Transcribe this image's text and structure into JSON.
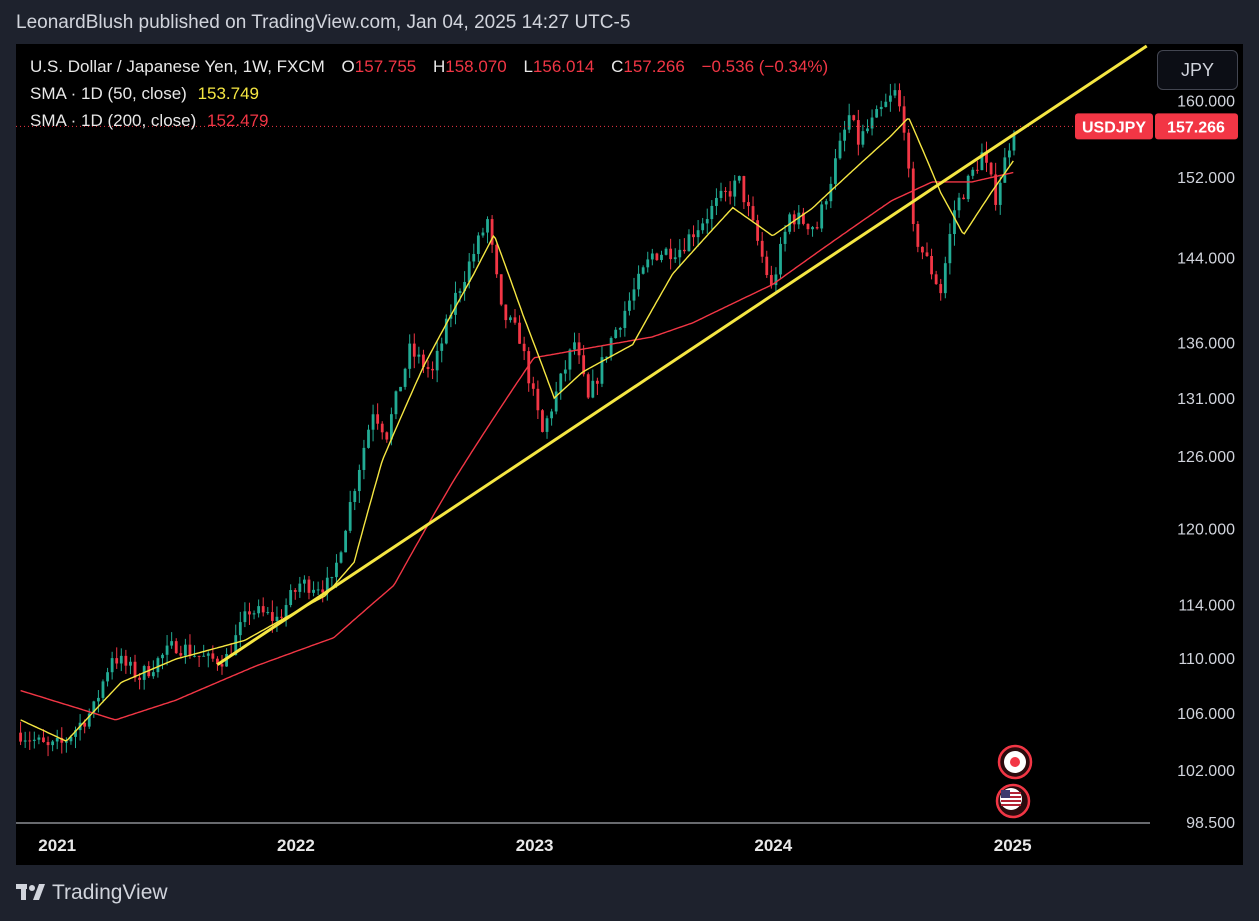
{
  "header": {
    "text": "LeonardBlush published on TradingView.com, Jan 04, 2025 14:27 UTC-5"
  },
  "legend": {
    "title": "U.S. Dollar / Japanese Yen, 1W, FXCM",
    "o_label": "O",
    "o_value": "157.755",
    "h_label": "H",
    "h_value": "158.070",
    "l_label": "L",
    "l_value": "156.014",
    "c_label": "C",
    "c_value": "157.266",
    "change": "−0.536 (−0.34%)",
    "sma50_label": "SMA · 1D (50, close)",
    "sma50_value": "153.749",
    "sma200_label": "SMA · 1D (200, close)",
    "sma200_value": "152.479"
  },
  "currency_button": "JPY",
  "price_tag": {
    "symbol": "USDJPY",
    "price": "157.266"
  },
  "footer": {
    "brand": "TradingView",
    "logo_icon": "tradingview-logo-icon"
  },
  "icons": {
    "event1": "event-flag-japan-icon",
    "event2": "event-flag-us-icon"
  },
  "colors": {
    "up": "#22ab94",
    "down": "#f23645",
    "sma50": "#f5e642",
    "sma200": "#f23645",
    "trendline": "#f5e642",
    "background": "#000000"
  },
  "chart_data": {
    "type": "candlestick",
    "symbol": "USDJPY",
    "interval": "1W",
    "log_scale": true,
    "ylim": [
      98.5,
      166
    ],
    "y_ticks": [
      "160.000",
      "152.000",
      "144.000",
      "136.000",
      "131.000",
      "126.000",
      "120.000",
      "114.000",
      "110.000",
      "106.000",
      "102.000",
      "98.500"
    ],
    "x_ticks": [
      "2021",
      "2022",
      "2023",
      "2024",
      "2025"
    ],
    "close_anchors": [
      [
        "2020-11-06",
        104.6
      ],
      [
        "2020-12-18",
        103.5
      ],
      [
        "2021-01-08",
        103.8
      ],
      [
        "2021-02-26",
        106.3
      ],
      [
        "2021-03-26",
        110.2
      ],
      [
        "2021-05-07",
        108.6
      ],
      [
        "2021-07-02",
        111.0
      ],
      [
        "2021-08-20",
        109.8
      ],
      [
        "2021-09-17",
        110.0
      ],
      [
        "2021-10-22",
        113.6
      ],
      [
        "2021-12-03",
        112.9
      ],
      [
        "2022-01-07",
        115.6
      ],
      [
        "2022-02-25",
        115.5
      ],
      [
        "2022-03-25",
        122.0
      ],
      [
        "2022-04-29",
        130.0
      ],
      [
        "2022-05-20",
        127.9
      ],
      [
        "2022-06-24",
        135.2
      ],
      [
        "2022-07-29",
        133.2
      ],
      [
        "2022-09-02",
        140.2
      ],
      [
        "2022-10-21",
        147.6
      ],
      [
        "2022-11-11",
        138.8
      ],
      [
        "2022-12-09",
        136.5
      ],
      [
        "2022-12-30",
        131.1
      ],
      [
        "2023-01-13",
        127.9
      ],
      [
        "2023-03-03",
        136.0
      ],
      [
        "2023-03-24",
        130.7
      ],
      [
        "2023-04-28",
        136.3
      ],
      [
        "2023-06-30",
        144.3
      ],
      [
        "2023-08-11",
        144.9
      ],
      [
        "2023-10-06",
        149.3
      ],
      [
        "2023-11-10",
        151.5
      ],
      [
        "2023-12-29",
        141.0
      ],
      [
        "2024-01-26",
        148.1
      ],
      [
        "2024-03-08",
        147.0
      ],
      [
        "2024-04-26",
        158.3
      ],
      [
        "2024-05-10",
        155.7
      ],
      [
        "2024-07-05",
        160.8
      ],
      [
        "2024-07-19",
        157.5
      ],
      [
        "2024-08-02",
        146.5
      ],
      [
        "2024-09-13",
        140.8
      ],
      [
        "2024-10-04",
        148.7
      ],
      [
        "2024-11-15",
        154.3
      ],
      [
        "2024-12-06",
        150.0
      ],
      [
        "2025-01-03",
        157.266
      ]
    ],
    "sma50_anchors": [
      [
        "2020-11-06",
        105.5
      ],
      [
        "2021-01-15",
        104.0
      ],
      [
        "2021-04-09",
        108.2
      ],
      [
        "2021-07-01",
        109.9
      ],
      [
        "2021-10-15",
        111.3
      ],
      [
        "2022-02-15",
        114.7
      ],
      [
        "2022-03-31",
        117.3
      ],
      [
        "2022-05-13",
        125.6
      ],
      [
        "2022-07-15",
        133.8
      ],
      [
        "2022-09-30",
        142.4
      ],
      [
        "2022-10-31",
        146.2
      ],
      [
        "2022-12-15",
        138.4
      ],
      [
        "2023-01-31",
        131.0
      ],
      [
        "2023-03-15",
        133.3
      ],
      [
        "2023-05-31",
        135.8
      ],
      [
        "2023-07-31",
        142.4
      ],
      [
        "2023-10-31",
        148.9
      ],
      [
        "2023-12-31",
        146.1
      ],
      [
        "2024-02-29",
        148.8
      ],
      [
        "2024-06-28",
        156.2
      ],
      [
        "2024-07-26",
        158.2
      ],
      [
        "2024-09-13",
        150.4
      ],
      [
        "2024-10-18",
        146.2
      ],
      [
        "2024-11-29",
        150.4
      ],
      [
        "2025-01-03",
        153.749
      ]
    ],
    "sma200_anchors": [
      [
        "2020-11-06",
        107.6
      ],
      [
        "2021-03-31",
        105.5
      ],
      [
        "2021-07-01",
        106.9
      ],
      [
        "2021-11-01",
        109.4
      ],
      [
        "2022-02-28",
        111.5
      ],
      [
        "2022-05-31",
        115.5
      ],
      [
        "2022-08-31",
        124.0
      ],
      [
        "2022-12-31",
        134.6
      ],
      [
        "2023-06-30",
        136.5
      ],
      [
        "2023-08-31",
        137.8
      ],
      [
        "2023-12-31",
        141.4
      ],
      [
        "2024-06-30",
        149.6
      ],
      [
        "2024-08-31",
        151.5
      ],
      [
        "2024-10-31",
        151.5
      ],
      [
        "2025-01-03",
        152.479
      ]
    ],
    "trendline": {
      "start": [
        "2021-09-03",
        109.5
      ],
      "end": [
        "2025-07-25",
        166.0
      ]
    },
    "last_price": 157.266
  }
}
